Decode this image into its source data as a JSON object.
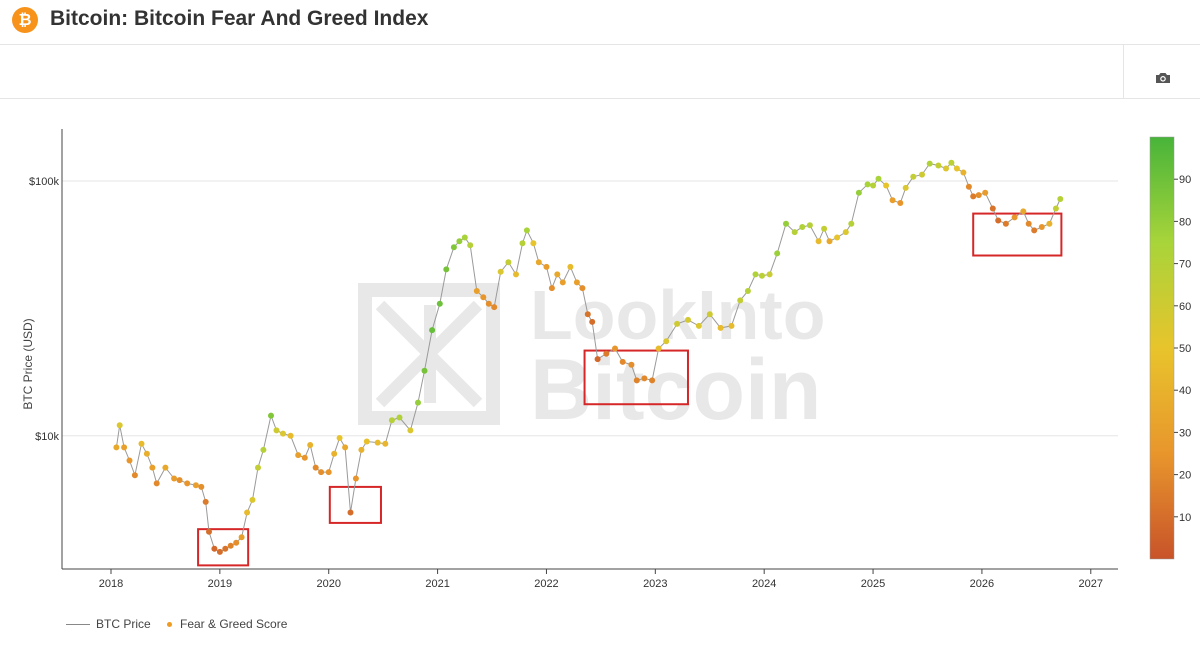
{
  "header": {
    "title": "Bitcoin: Bitcoin Fear And Greed Index",
    "logo_glyph": "₿",
    "logo_color": "#f7931a"
  },
  "toolbar": {
    "camera_icon": "camera-icon"
  },
  "watermark": {
    "line1": "LookInto",
    "line2": "Bitcoin"
  },
  "legend": {
    "price_label": "BTC Price",
    "score_label": "Fear & Greed Score"
  },
  "chart_data": {
    "type": "scatter",
    "xlabel": "",
    "ylabel": "BTC Price (USD)",
    "x_range": [
      2017.55,
      2027.25
    ],
    "x_ticks": [
      "2018",
      "2019",
      "2020",
      "2021",
      "2022",
      "2023",
      "2024",
      "2025",
      "2026",
      "2027"
    ],
    "y_scale": "log",
    "y_range": [
      3000,
      160000
    ],
    "y_ticks": [
      {
        "value": 10000,
        "label": "$10k"
      },
      {
        "value": 100000,
        "label": "$100k"
      }
    ],
    "colorbar": {
      "range": [
        0,
        100
      ],
      "ticks": [
        10,
        20,
        30,
        40,
        50,
        60,
        70,
        80,
        90
      ],
      "colors": [
        "#c8532a",
        "#e8962c",
        "#e8c42c",
        "#a8d43a",
        "#48b43a"
      ]
    },
    "series": [
      {
        "name": "BTC Price",
        "kind": "line",
        "color": "#888888"
      },
      {
        "name": "Fear & Greed Score",
        "kind": "markers"
      }
    ],
    "points": [
      [
        2018.05,
        9000,
        35
      ],
      [
        2018.08,
        11000,
        55
      ],
      [
        2018.12,
        9000,
        30
      ],
      [
        2018.17,
        8000,
        25
      ],
      [
        2018.22,
        7000,
        20
      ],
      [
        2018.28,
        9300,
        45
      ],
      [
        2018.33,
        8500,
        38
      ],
      [
        2018.38,
        7500,
        30
      ],
      [
        2018.42,
        6500,
        20
      ],
      [
        2018.5,
        7500,
        35
      ],
      [
        2018.58,
        6800,
        28
      ],
      [
        2018.63,
        6700,
        22
      ],
      [
        2018.7,
        6500,
        25
      ],
      [
        2018.78,
        6400,
        30
      ],
      [
        2018.83,
        6300,
        22
      ],
      [
        2018.87,
        5500,
        15
      ],
      [
        2018.9,
        4200,
        10
      ],
      [
        2018.95,
        3600,
        8
      ],
      [
        2019.0,
        3500,
        10
      ],
      [
        2019.05,
        3600,
        12
      ],
      [
        2019.1,
        3700,
        18
      ],
      [
        2019.15,
        3800,
        22
      ],
      [
        2019.2,
        4000,
        30
      ],
      [
        2019.25,
        5000,
        45
      ],
      [
        2019.3,
        5600,
        55
      ],
      [
        2019.35,
        7500,
        65
      ],
      [
        2019.4,
        8800,
        70
      ],
      [
        2019.47,
        12000,
        85
      ],
      [
        2019.52,
        10500,
        60
      ],
      [
        2019.58,
        10200,
        55
      ],
      [
        2019.65,
        10000,
        45
      ],
      [
        2019.72,
        8400,
        30
      ],
      [
        2019.78,
        8200,
        25
      ],
      [
        2019.83,
        9200,
        40
      ],
      [
        2019.88,
        7500,
        20
      ],
      [
        2019.93,
        7200,
        22
      ],
      [
        2020.0,
        7200,
        25
      ],
      [
        2020.05,
        8500,
        40
      ],
      [
        2020.1,
        9800,
        50
      ],
      [
        2020.15,
        9000,
        35
      ],
      [
        2020.2,
        5000,
        10
      ],
      [
        2020.25,
        6800,
        25
      ],
      [
        2020.3,
        8800,
        40
      ],
      [
        2020.35,
        9500,
        48
      ],
      [
        2020.45,
        9400,
        45
      ],
      [
        2020.52,
        9300,
        42
      ],
      [
        2020.58,
        11500,
        70
      ],
      [
        2020.65,
        11800,
        72
      ],
      [
        2020.75,
        10500,
        55
      ],
      [
        2020.82,
        13500,
        80
      ],
      [
        2020.88,
        18000,
        88
      ],
      [
        2020.95,
        26000,
        92
      ],
      [
        2021.02,
        33000,
        90
      ],
      [
        2021.08,
        45000,
        88
      ],
      [
        2021.15,
        55000,
        85
      ],
      [
        2021.2,
        58000,
        80
      ],
      [
        2021.25,
        60000,
        75
      ],
      [
        2021.3,
        56000,
        70
      ],
      [
        2021.36,
        37000,
        30
      ],
      [
        2021.42,
        35000,
        25
      ],
      [
        2021.47,
        33000,
        22
      ],
      [
        2021.52,
        32000,
        20
      ],
      [
        2021.58,
        44000,
        55
      ],
      [
        2021.65,
        48000,
        65
      ],
      [
        2021.72,
        43000,
        45
      ],
      [
        2021.78,
        57000,
        70
      ],
      [
        2021.82,
        64000,
        75
      ],
      [
        2021.88,
        57000,
        50
      ],
      [
        2021.93,
        48000,
        35
      ],
      [
        2022.0,
        46000,
        28
      ],
      [
        2022.05,
        38000,
        22
      ],
      [
        2022.1,
        43000,
        35
      ],
      [
        2022.15,
        40000,
        30
      ],
      [
        2022.22,
        46000,
        45
      ],
      [
        2022.28,
        40000,
        30
      ],
      [
        2022.33,
        38000,
        22
      ],
      [
        2022.38,
        30000,
        12
      ],
      [
        2022.42,
        28000,
        10
      ],
      [
        2022.47,
        20000,
        8
      ],
      [
        2022.55,
        21000,
        15
      ],
      [
        2022.63,
        22000,
        25
      ],
      [
        2022.7,
        19500,
        20
      ],
      [
        2022.78,
        19000,
        22
      ],
      [
        2022.83,
        16500,
        18
      ],
      [
        2022.9,
        16800,
        20
      ],
      [
        2022.97,
        16500,
        18
      ],
      [
        2023.03,
        22000,
        45
      ],
      [
        2023.1,
        23500,
        55
      ],
      [
        2023.2,
        27500,
        60
      ],
      [
        2023.3,
        28500,
        58
      ],
      [
        2023.4,
        27000,
        55
      ],
      [
        2023.5,
        30000,
        60
      ],
      [
        2023.6,
        26500,
        45
      ],
      [
        2023.7,
        27000,
        45
      ],
      [
        2023.78,
        34000,
        65
      ],
      [
        2023.85,
        37000,
        70
      ],
      [
        2023.92,
        43000,
        72
      ],
      [
        2023.98,
        42500,
        68
      ],
      [
        2024.05,
        43000,
        62
      ],
      [
        2024.12,
        52000,
        78
      ],
      [
        2024.2,
        68000,
        80
      ],
      [
        2024.28,
        63000,
        70
      ],
      [
        2024.35,
        66000,
        72
      ],
      [
        2024.42,
        67000,
        70
      ],
      [
        2024.5,
        58000,
        45
      ],
      [
        2024.55,
        65000,
        65
      ],
      [
        2024.6,
        58000,
        35
      ],
      [
        2024.67,
        60000,
        50
      ],
      [
        2024.75,
        63000,
        55
      ],
      [
        2024.8,
        68000,
        70
      ],
      [
        2024.87,
        90000,
        80
      ],
      [
        2024.95,
        97000,
        75
      ],
      [
        2025.0,
        96000,
        70
      ],
      [
        2025.05,
        102000,
        75
      ],
      [
        2025.12,
        96000,
        50
      ],
      [
        2025.18,
        84000,
        30
      ],
      [
        2025.25,
        82000,
        25
      ],
      [
        2025.3,
        94000,
        55
      ],
      [
        2025.37,
        104000,
        65
      ],
      [
        2025.45,
        106000,
        60
      ],
      [
        2025.52,
        117000,
        72
      ],
      [
        2025.6,
        115000,
        65
      ],
      [
        2025.67,
        112000,
        55
      ],
      [
        2025.72,
        118000,
        68
      ],
      [
        2025.77,
        112000,
        50
      ],
      [
        2025.83,
        108000,
        40
      ],
      [
        2025.88,
        95000,
        20
      ],
      [
        2025.92,
        87000,
        15
      ],
      [
        2025.97,
        88000,
        22
      ],
      [
        2026.03,
        90000,
        28
      ],
      [
        2026.1,
        78000,
        12
      ],
      [
        2026.15,
        70000,
        10
      ],
      [
        2026.22,
        68000,
        15
      ],
      [
        2026.3,
        72000,
        25
      ],
      [
        2026.38,
        76000,
        35
      ],
      [
        2026.43,
        68000,
        20
      ],
      [
        2026.48,
        64000,
        15
      ],
      [
        2026.55,
        66000,
        25
      ],
      [
        2026.62,
        68000,
        40
      ],
      [
        2026.68,
        78000,
        65
      ],
      [
        2026.72,
        85000,
        70
      ]
    ],
    "highlight_boxes": [
      {
        "x": [
          2018.8,
          2019.26
        ],
        "y": [
          3100,
          4300
        ]
      },
      {
        "x": [
          2020.01,
          2020.48
        ],
        "y": [
          4550,
          6300
        ]
      },
      {
        "x": [
          2022.35,
          2023.3
        ],
        "y": [
          13300,
          21600
        ]
      },
      {
        "x": [
          2025.92,
          2026.73
        ],
        "y": [
          51000,
          74500
        ]
      }
    ]
  }
}
